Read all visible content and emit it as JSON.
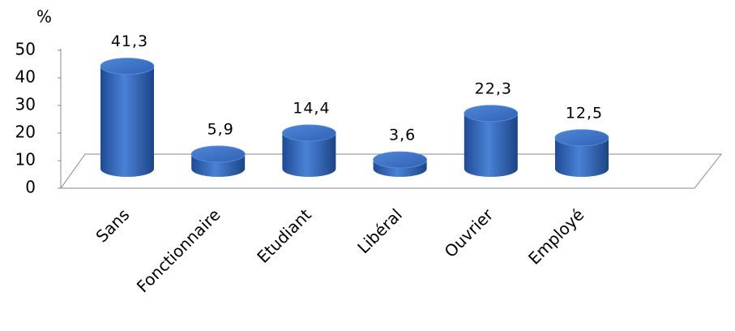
{
  "chart_data": {
    "type": "bar",
    "y_label": "%",
    "categories": [
      "Sans",
      "Fonctionnaire",
      "Etudiant",
      "Libéral",
      "Ouvrier",
      "Employé"
    ],
    "values": [
      41.3,
      5.9,
      14.4,
      3.6,
      22.3,
      12.5
    ],
    "value_labels": [
      "41,3",
      "5,9",
      "14,4",
      "3,6",
      "22,3",
      "12,5"
    ],
    "color": "#3a6fc4",
    "ylim": [
      0,
      50
    ],
    "yticks": [
      0,
      10,
      20,
      30,
      40,
      50
    ]
  }
}
